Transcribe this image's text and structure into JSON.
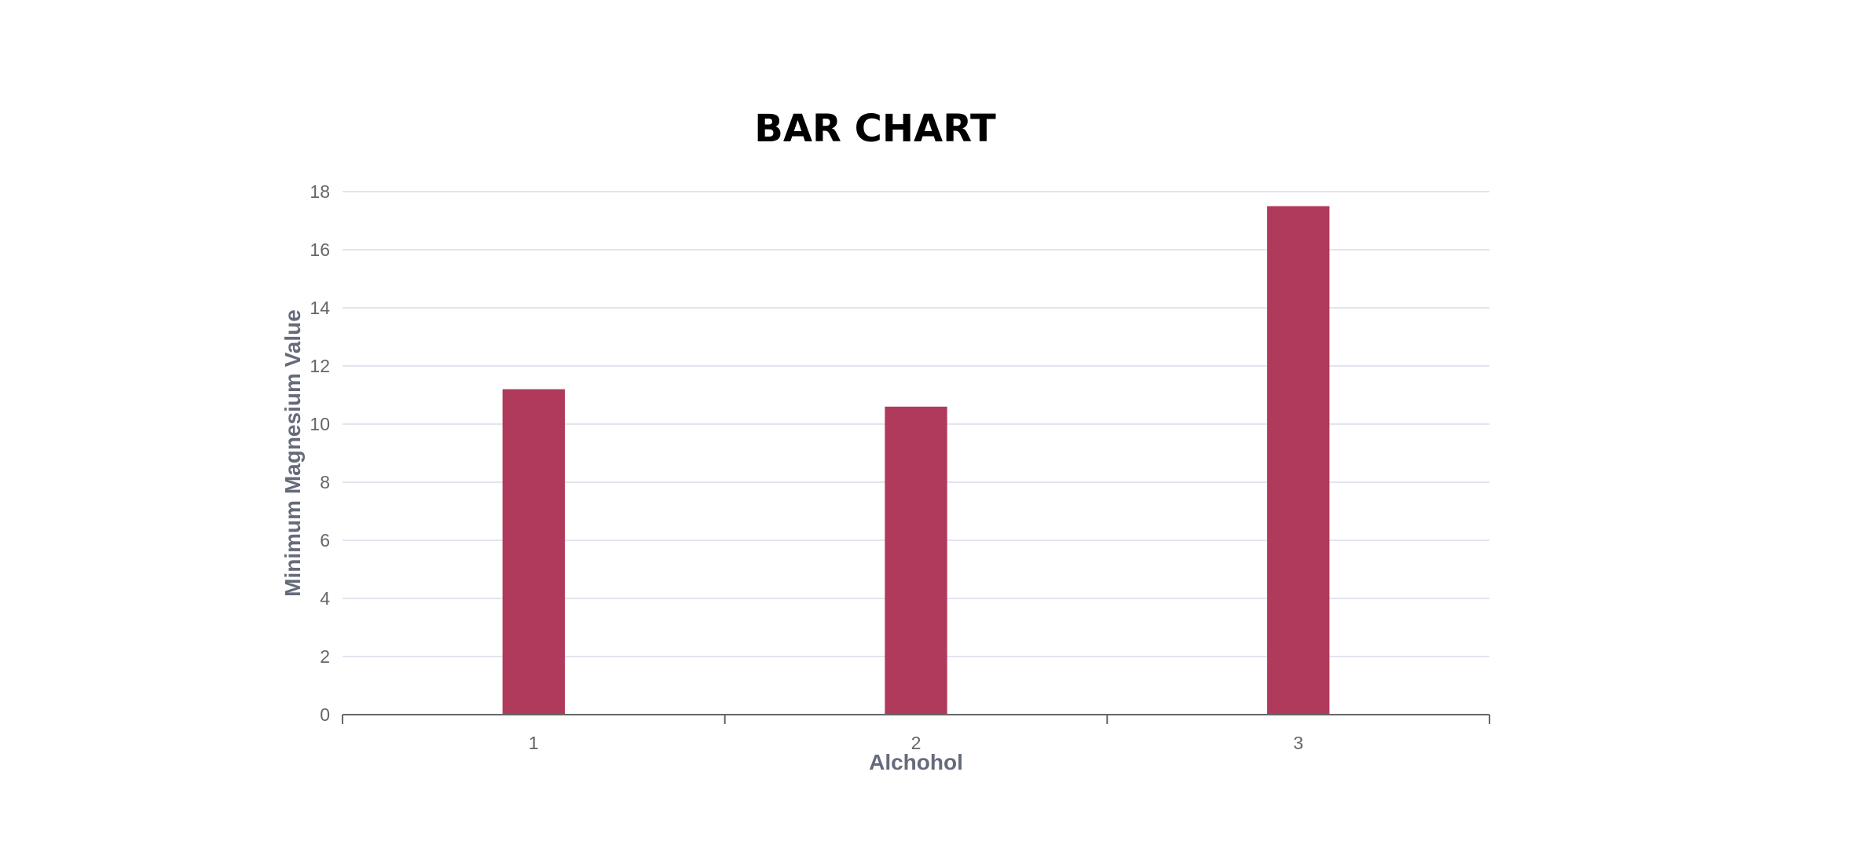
{
  "chart_data": {
    "type": "bar",
    "title": "BAR CHART",
    "xlabel": "Alchohol",
    "ylabel": "Minimum Magnesium Value",
    "categories": [
      "1",
      "2",
      "3"
    ],
    "series": [
      {
        "values": [
          11.2,
          10.6,
          17.5
        ]
      }
    ],
    "ylim": [
      0,
      18
    ],
    "yticks": [
      0,
      2,
      4,
      6,
      8,
      10,
      12,
      14,
      16,
      18
    ],
    "grid": true,
    "legend": "none",
    "colors": {
      "bar": "#b03a5b",
      "grid": "#e4e4f0",
      "axis": "#666666"
    }
  }
}
